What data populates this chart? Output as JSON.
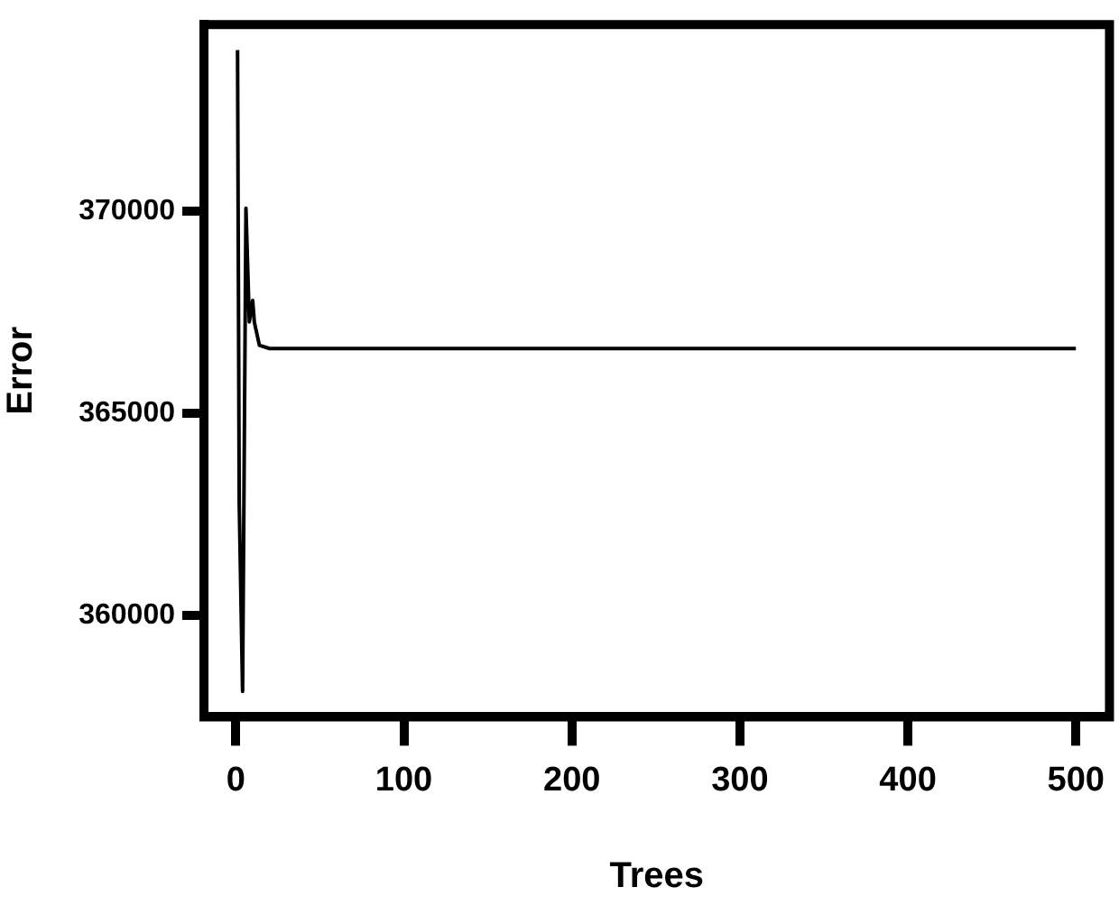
{
  "chart_data": {
    "type": "line",
    "xlabel": "Trees",
    "ylabel": "Error",
    "x": [
      1,
      2,
      4,
      6,
      8,
      10,
      11,
      14,
      20,
      50,
      100,
      200,
      300,
      400,
      500
    ],
    "series": [
      {
        "color": "#000000",
        "values": [
          373980,
          362770,
          358120,
          370070,
          367260,
          367790,
          367250,
          366680,
          366600,
          366600,
          366600,
          366600,
          366600,
          366600,
          366600
        ]
      }
    ],
    "xlim": [
      -19,
      520
    ],
    "xticks": [
      0,
      100,
      200,
      300,
      400,
      500
    ],
    "ylim": [
      357490,
      374614
    ],
    "yticks": [
      360000,
      365000,
      370000
    ],
    "grid": false,
    "legend": false,
    "marker": "none",
    "line_style": "solid"
  }
}
